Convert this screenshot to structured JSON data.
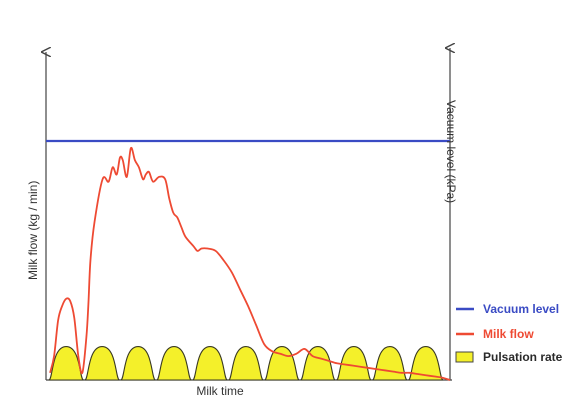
{
  "chart_data": {
    "type": "line",
    "title": "",
    "xlabel": "Milk time",
    "ylabel_left": "Milk flow (kg / min)",
    "ylabel_right": "Vacuum level (kPa)",
    "grid": false,
    "legend_position": "right",
    "xlim": [
      0,
      100
    ],
    "ylim": [
      0,
      100
    ],
    "series": [
      {
        "name": "Vacuum level",
        "color": "#3a4bc4",
        "x": [
          0,
          100
        ],
        "y": [
          100,
          100
        ]
      },
      {
        "name": "Milk flow",
        "color": "#ee4a33",
        "x": [
          1,
          2,
          3,
          4,
          5,
          6,
          7,
          8,
          9,
          10,
          10.5,
          11,
          12,
          14,
          15.5,
          16.5,
          17.5,
          18.3,
          19,
          20,
          21,
          22,
          23,
          24,
          24.7,
          25.5,
          26.5,
          28,
          29.5,
          30.5,
          31.5,
          32.5,
          33.5,
          34.5,
          36.5,
          37.5,
          38.5,
          40,
          42,
          44,
          46,
          48,
          50,
          52,
          54,
          56,
          58,
          60,
          62,
          64,
          66,
          68,
          70,
          72,
          74,
          76,
          78,
          80,
          82,
          84,
          86,
          88,
          90,
          92,
          94,
          96,
          98,
          100
        ],
        "y": [
          3,
          10,
          25,
          31,
          34,
          33,
          26,
          10,
          3,
          18,
          32,
          50,
          66,
          84,
          83,
          89,
          86,
          93,
          92,
          85,
          97,
          92,
          89,
          84,
          86,
          87,
          83,
          85,
          84,
          76,
          70,
          68,
          64,
          60,
          56,
          54,
          55,
          55,
          54,
          50,
          45,
          38,
          31,
          23,
          15,
          12,
          11,
          10,
          11,
          13,
          10,
          9,
          8,
          7,
          6.5,
          6,
          5.5,
          5,
          4.5,
          4,
          3.5,
          3,
          3,
          2.5,
          2,
          1.5,
          1,
          0
        ]
      },
      {
        "name": "Pulsation rate",
        "color": "#f4f02a",
        "type": "pulse",
        "x": [
          5,
          13.9,
          22.8,
          31.7,
          40.6,
          49.5,
          58.4,
          67.3,
          76.2,
          85.1,
          94
        ],
        "y": [
          14,
          14,
          14,
          14,
          14,
          14,
          14,
          14,
          14,
          14,
          14
        ]
      }
    ]
  }
}
